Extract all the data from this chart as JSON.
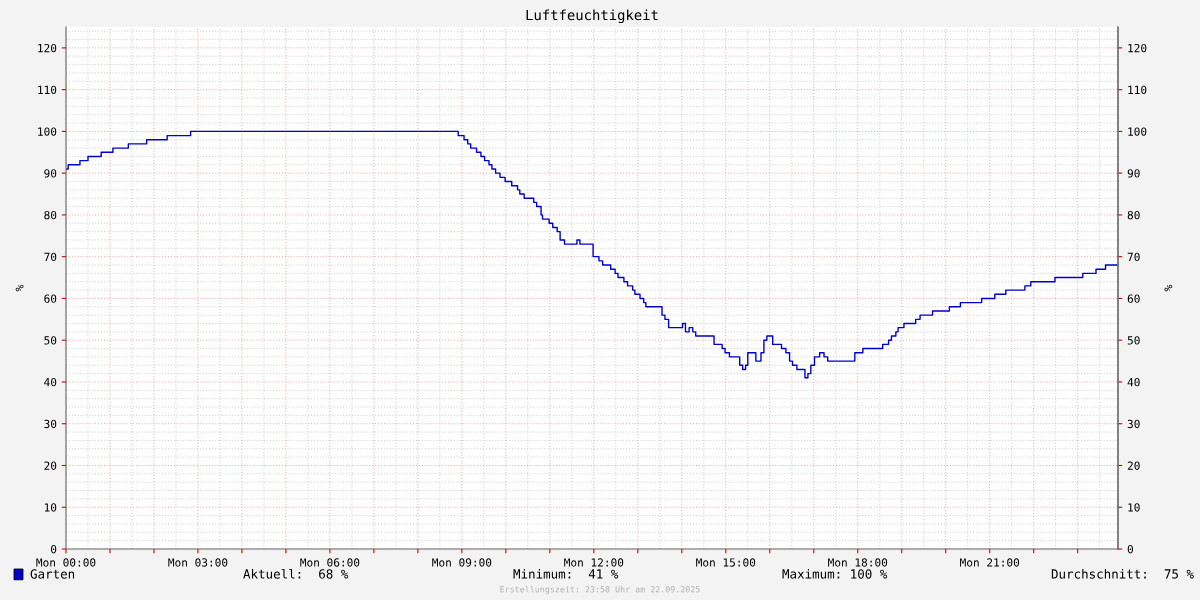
{
  "chart_data": {
    "type": "step",
    "title": "Luftfeuchtigkeit",
    "ylabel": "%",
    "y2label": "%",
    "x": [
      "2025-09-22T00:00",
      "2025-09-22T00:03",
      "2025-09-22T00:19",
      "2025-09-22T00:30",
      "2025-09-22T00:48",
      "2025-09-22T01:04",
      "2025-09-22T01:25",
      "2025-09-22T01:50",
      "2025-09-22T02:18",
      "2025-09-22T02:50",
      "2025-09-22T08:53",
      "2025-09-22T08:55",
      "2025-09-22T09:03",
      "2025-09-22T09:08",
      "2025-09-22T09:12",
      "2025-09-22T09:20",
      "2025-09-22T09:26",
      "2025-09-22T09:31",
      "2025-09-22T09:37",
      "2025-09-22T09:41",
      "2025-09-22T09:46",
      "2025-09-22T09:52",
      "2025-09-22T09:59",
      "2025-09-22T10:08",
      "2025-09-22T10:16",
      "2025-09-22T10:19",
      "2025-09-22T10:25",
      "2025-09-22T10:38",
      "2025-09-22T10:42",
      "2025-09-22T10:48",
      "2025-09-22T10:50",
      "2025-09-22T10:59",
      "2025-09-22T11:04",
      "2025-09-22T11:10",
      "2025-09-22T11:14",
      "2025-09-22T11:20",
      "2025-09-22T11:34",
      "2025-09-22T11:37",
      "2025-09-22T11:41",
      "2025-09-22T11:55",
      "2025-09-22T11:59",
      "2025-09-22T12:07",
      "2025-09-22T12:12",
      "2025-09-22T12:23",
      "2025-09-22T12:29",
      "2025-09-22T12:33",
      "2025-09-22T12:41",
      "2025-09-22T12:46",
      "2025-09-22T12:53",
      "2025-09-22T12:56",
      "2025-09-22T13:03",
      "2025-09-22T13:08",
      "2025-09-22T13:11",
      "2025-09-22T13:30",
      "2025-09-22T13:33",
      "2025-09-22T13:37",
      "2025-09-22T13:42",
      "2025-09-22T13:59",
      "2025-09-22T14:01",
      "2025-09-22T14:05",
      "2025-09-22T14:10",
      "2025-09-22T14:15",
      "2025-09-22T14:19",
      "2025-09-22T14:41",
      "2025-09-22T14:44",
      "2025-09-22T14:55",
      "2025-09-22T14:59",
      "2025-09-22T15:05",
      "2025-09-22T15:16",
      "2025-09-22T15:19",
      "2025-09-22T15:23",
      "2025-09-22T15:27",
      "2025-09-22T15:30",
      "2025-09-22T15:35",
      "2025-09-22T15:41",
      "2025-09-22T15:44",
      "2025-09-22T15:48",
      "2025-09-22T15:52",
      "2025-09-22T15:56",
      "2025-09-22T16:00",
      "2025-09-22T16:04",
      "2025-09-22T16:12",
      "2025-09-22T16:16",
      "2025-09-22T16:22",
      "2025-09-22T16:27",
      "2025-09-22T16:31",
      "2025-09-22T16:37",
      "2025-09-22T16:45",
      "2025-09-22T16:48",
      "2025-09-22T16:52",
      "2025-09-22T16:56",
      "2025-09-22T17:01",
      "2025-09-22T17:08",
      "2025-09-22T17:14",
      "2025-09-22T17:19",
      "2025-09-22T17:53",
      "2025-09-22T17:56",
      "2025-09-22T18:05",
      "2025-09-22T18:07",
      "2025-09-22T18:30",
      "2025-09-22T18:34",
      "2025-09-22T18:42",
      "2025-09-22T18:46",
      "2025-09-22T18:52",
      "2025-09-22T18:55",
      "2025-09-22T19:03",
      "2025-09-22T19:19",
      "2025-09-22T19:25",
      "2025-09-22T19:42",
      "2025-09-22T20:05",
      "2025-09-22T20:20",
      "2025-09-22T20:49",
      "2025-09-22T21:07",
      "2025-09-22T21:22",
      "2025-09-22T21:48",
      "2025-09-22T21:56",
      "2025-09-22T22:29",
      "2025-09-22T23:07",
      "2025-09-22T23:25",
      "2025-09-22T23:38",
      "2025-09-22T23:55"
    ],
    "series": [
      {
        "name": "Garten",
        "color": "#0000cc",
        "values": [
          91,
          92,
          93,
          94,
          95,
          96,
          97,
          98,
          99,
          100,
          100,
          99,
          98,
          97,
          96,
          95,
          94,
          93,
          92,
          91,
          90,
          89,
          88,
          87,
          86,
          85,
          84,
          83,
          82,
          80,
          79,
          78,
          77,
          76,
          74,
          73,
          73,
          74,
          73,
          73,
          70,
          69,
          68,
          67,
          66,
          65,
          64,
          63,
          62,
          61,
          60,
          59,
          58,
          58,
          56,
          55,
          53,
          53,
          54,
          52,
          53,
          52,
          51,
          51,
          49,
          48,
          47,
          46,
          46,
          44,
          43,
          44,
          47,
          47,
          45,
          45,
          47,
          50,
          51,
          51,
          49,
          49,
          48,
          47,
          45,
          44,
          43,
          43,
          41,
          42,
          44,
          46,
          47,
          46,
          45,
          45,
          47,
          47,
          48,
          48,
          49,
          50,
          51,
          52,
          53,
          54,
          55,
          56,
          57,
          58,
          59,
          60,
          61,
          62,
          63,
          64,
          65,
          66,
          67,
          68,
          68
        ]
      }
    ],
    "xlim": [
      "2025-09-22T00:00",
      "2025-09-22T23:55"
    ],
    "xticks": [
      {
        "value": "2025-09-22T00:00",
        "label": "Mon 00:00"
      },
      {
        "value": "2025-09-22T01:00",
        "label": null
      },
      {
        "value": "2025-09-22T02:00",
        "label": null
      },
      {
        "value": "2025-09-22T03:00",
        "label": "Mon 03:00"
      },
      {
        "value": "2025-09-22T04:00",
        "label": null
      },
      {
        "value": "2025-09-22T05:00",
        "label": null
      },
      {
        "value": "2025-09-22T06:00",
        "label": "Mon 06:00"
      },
      {
        "value": "2025-09-22T07:00",
        "label": null
      },
      {
        "value": "2025-09-22T08:00",
        "label": null
      },
      {
        "value": "2025-09-22T09:00",
        "label": "Mon 09:00"
      },
      {
        "value": "2025-09-22T10:00",
        "label": null
      },
      {
        "value": "2025-09-22T11:00",
        "label": null
      },
      {
        "value": "2025-09-22T12:00",
        "label": "Mon 12:00"
      },
      {
        "value": "2025-09-22T13:00",
        "label": null
      },
      {
        "value": "2025-09-22T14:00",
        "label": null
      },
      {
        "value": "2025-09-22T15:00",
        "label": "Mon 15:00"
      },
      {
        "value": "2025-09-22T16:00",
        "label": null
      },
      {
        "value": "2025-09-22T17:00",
        "label": null
      },
      {
        "value": "2025-09-22T18:00",
        "label": "Mon 18:00"
      },
      {
        "value": "2025-09-22T19:00",
        "label": null
      },
      {
        "value": "2025-09-22T20:00",
        "label": null
      },
      {
        "value": "2025-09-22T21:00",
        "label": "Mon 21:00"
      },
      {
        "value": "2025-09-22T22:00",
        "label": null
      },
      {
        "value": "2025-09-22T23:00",
        "label": null
      }
    ],
    "ylim": [
      0,
      125
    ],
    "yticks": [
      0,
      10,
      20,
      30,
      40,
      50,
      60,
      70,
      80,
      90,
      100,
      110,
      120
    ],
    "y2lim": [
      0,
      125
    ],
    "y2ticks": [
      0,
      10,
      20,
      30,
      40,
      50,
      60,
      70,
      80,
      90,
      100,
      110,
      120
    ],
    "grid": true,
    "legend": "bottom left",
    "annotations": [
      "Aktuell:  68 %",
      "Minimum:  41 %",
      "Maximum: 100 %",
      "Durchschnitt:  75 %",
      "Erstellungszeit: 23:58 Uhr am 22.09.2025"
    ]
  }
}
